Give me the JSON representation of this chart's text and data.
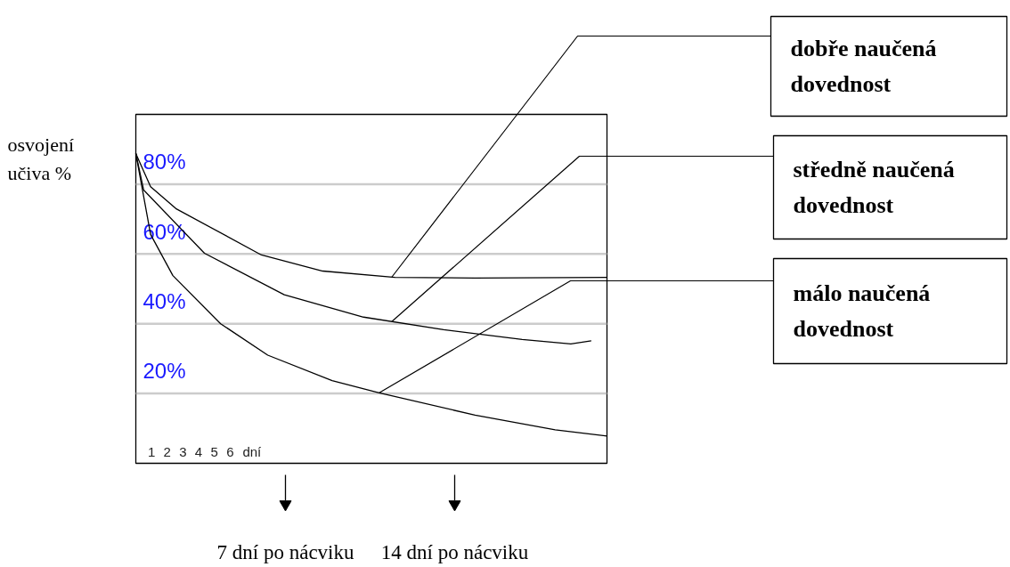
{
  "chart_data": {
    "type": "line",
    "ylabel": "osvojení učiva %",
    "xlabel": "dní",
    "annotations": [
      "7 dní po nácviku",
      "14 dní po nácviku"
    ],
    "xlim": [
      0,
      30
    ],
    "ylim": [
      0,
      100
    ],
    "xticks": [
      1,
      2,
      3,
      4,
      5,
      6
    ],
    "yticks": [
      {
        "value": 20,
        "label": "20%"
      },
      {
        "value": 40,
        "label": "40%"
      },
      {
        "value": 60,
        "label": "60%"
      },
      {
        "value": 80,
        "label": "80%"
      }
    ],
    "grid": "y",
    "line_style": "solid",
    "series": [
      {
        "name": "dobře naučená dovednost",
        "color": "#000000",
        "x": [
          0,
          0.94,
          2.55,
          8.0,
          11.9,
          16.5,
          21.6,
          30
        ],
        "values": [
          88.8,
          79.3,
          73,
          59.7,
          55.1,
          53.3,
          53.1,
          53.3
        ]
      },
      {
        "name": "středně naučená dovednost",
        "color": "#000000",
        "x": [
          0,
          0.5,
          4.37,
          9.45,
          14.5,
          19.6,
          24.6,
          27.7,
          29
        ],
        "values": [
          88.8,
          78.3,
          60.2,
          48.3,
          41.9,
          38.3,
          35.5,
          34.2,
          35.1
        ]
      },
      {
        "name": "málo naučená dovednost",
        "color": "#000000",
        "x": [
          0,
          0.94,
          2.36,
          5.4,
          8.4,
          12.5,
          15.5,
          21.6,
          26.7,
          30
        ],
        "values": [
          88.8,
          65.6,
          53.8,
          40,
          31,
          23.7,
          20.2,
          13.8,
          9.6,
          7.8
        ]
      }
    ]
  }
}
